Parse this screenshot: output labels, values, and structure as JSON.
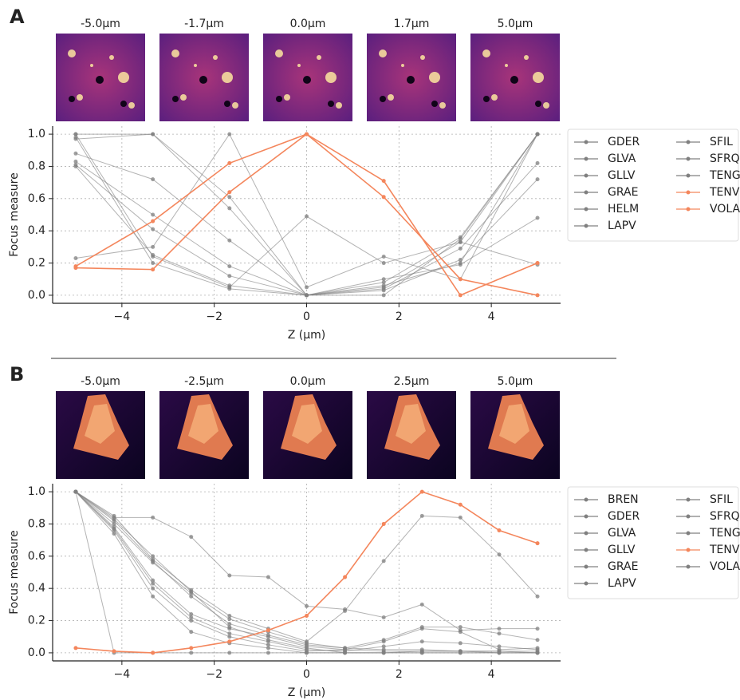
{
  "chart_data": [
    {
      "type": "line",
      "panel_label": "A",
      "image_labels": [
        "-5.0μm",
        "-1.7μm",
        "0.0μm",
        "1.7μm",
        "5.0μm"
      ],
      "xlabel": "Z (μm)",
      "ylabel": "Focus measure",
      "x": [
        -5,
        -3.33,
        -1.67,
        0,
        1.67,
        3.33,
        5
      ],
      "xlim": [
        -5.5,
        5.5
      ],
      "ylim": [
        -0.05,
        1.05
      ],
      "xticks": [
        {
          "value": -4,
          "label": "−4"
        },
        {
          "value": -2,
          "label": "−2"
        },
        0,
        2,
        4
      ],
      "yticks": [
        {
          "value": 0,
          "label": "0.0"
        },
        0.2,
        0.4,
        0.6,
        0.8,
        {
          "value": 1,
          "label": "1.0"
        }
      ],
      "grid": true,
      "legend": "outside-right",
      "legend_columns": 2,
      "series": [
        {
          "name": "GDER",
          "color": "#808080",
          "values": [
            1.0,
            1.0,
            0.61,
            0.0,
            0.05,
            0.33,
            1.0
          ]
        },
        {
          "name": "GLVA",
          "color": "#808080",
          "values": [
            0.97,
            1.0,
            0.54,
            0.0,
            0.08,
            0.36,
            1.0
          ]
        },
        {
          "name": "GLLV",
          "color": "#808080",
          "values": [
            0.88,
            0.72,
            0.34,
            0.0,
            0.04,
            0.29,
            0.82
          ]
        },
        {
          "name": "GRAE",
          "color": "#808080",
          "values": [
            0.83,
            0.5,
            0.18,
            0.0,
            0.03,
            0.22,
            0.72
          ]
        },
        {
          "name": "HELM",
          "color": "#808080",
          "values": [
            0.81,
            0.41,
            0.12,
            0.0,
            0.06,
            0.2,
            1.0
          ]
        },
        {
          "name": "LAPV",
          "color": "#808080",
          "values": [
            0.8,
            0.25,
            0.06,
            0.0,
            0.1,
            0.19,
            0.48
          ]
        },
        {
          "name": "SFIL",
          "color": "#808080",
          "values": [
            0.23,
            0.3,
            1.0,
            0.05,
            0.24,
            0.1,
            1.0
          ]
        },
        {
          "name": "SFRQ",
          "color": "#808080",
          "values": [
            1.0,
            0.24,
            0.05,
            0.49,
            0.2,
            0.33,
            0.19
          ]
        },
        {
          "name": "TENG",
          "color": "#808080",
          "values": [
            0.98,
            0.2,
            0.04,
            0.0,
            0.0,
            0.35,
            1.0
          ]
        },
        {
          "name": "TENV",
          "color": "#f4865c",
          "values": [
            0.18,
            0.46,
            0.82,
            1.0,
            0.71,
            0.0,
            0.2
          ]
        },
        {
          "name": "VOLA",
          "color": "#f4865c",
          "values": [
            0.17,
            0.16,
            0.64,
            1.0,
            0.61,
            0.1,
            0.0
          ]
        }
      ]
    },
    {
      "type": "line",
      "panel_label": "B",
      "image_labels": [
        "-5.0μm",
        "-2.5μm",
        "0.0μm",
        "2.5μm",
        "5.0μm"
      ],
      "xlabel": "Z (μm)",
      "ylabel": "Focus measure",
      "x": [
        -5,
        -4.17,
        -3.33,
        -2.5,
        -1.67,
        -0.83,
        0,
        0.83,
        1.67,
        2.5,
        3.33,
        4.17,
        5
      ],
      "xlim": [
        -5.5,
        5.5
      ],
      "ylim": [
        -0.05,
        1.05
      ],
      "xticks": [
        {
          "value": -4,
          "label": "−4"
        },
        {
          "value": -2,
          "label": "−2"
        },
        0,
        2,
        4
      ],
      "yticks": [
        {
          "value": 0,
          "label": "0.0"
        },
        0.2,
        0.4,
        0.6,
        0.8,
        {
          "value": 1,
          "label": "1.0"
        }
      ],
      "grid": true,
      "legend": "outside-right",
      "legend_columns": 2,
      "series": [
        {
          "name": "BREN",
          "color": "#808080",
          "values": [
            1.0,
            0.0,
            0.0,
            0.0,
            0.0,
            0.0,
            0.0,
            0.0,
            0.0,
            0.0,
            0.0,
            0.0,
            0.0
          ]
        },
        {
          "name": "GDER",
          "color": "#808080",
          "values": [
            1.0,
            0.84,
            0.84,
            0.72,
            0.48,
            0.47,
            0.29,
            0.27,
            0.22,
            0.3,
            0.14,
            0.15,
            0.15
          ]
        },
        {
          "name": "GLVA",
          "color": "#808080",
          "values": [
            1.0,
            0.85,
            0.58,
            0.39,
            0.23,
            0.15,
            0.07,
            0.26,
            0.57,
            0.85,
            0.84,
            0.61,
            0.35
          ]
        },
        {
          "name": "GLLV",
          "color": "#808080",
          "values": [
            1.0,
            0.8,
            0.56,
            0.37,
            0.21,
            0.13,
            0.06,
            0.03,
            0.08,
            0.16,
            0.16,
            0.12,
            0.08
          ]
        },
        {
          "name": "GRAE",
          "color": "#808080",
          "values": [
            1.0,
            0.78,
            0.45,
            0.24,
            0.15,
            0.1,
            0.04,
            0.02,
            0.07,
            0.15,
            0.13,
            0.02,
            0.03
          ]
        },
        {
          "name": "LAPV",
          "color": "#808080",
          "values": [
            1.0,
            0.77,
            0.43,
            0.22,
            0.12,
            0.07,
            0.02,
            0.01,
            0.04,
            0.07,
            0.06,
            0.04,
            0.02
          ]
        },
        {
          "name": "SFIL",
          "color": "#808080",
          "values": [
            1.0,
            0.76,
            0.4,
            0.2,
            0.1,
            0.05,
            0.01,
            0.02,
            0.01,
            0.01,
            0.01,
            0.01,
            0.01
          ]
        },
        {
          "name": "SFRQ",
          "color": "#808080",
          "values": [
            1.0,
            0.74,
            0.35,
            0.13,
            0.06,
            0.03,
            0.0,
            0.0,
            0.0,
            0.01,
            0.01,
            0.01,
            0.0
          ]
        },
        {
          "name": "TENG",
          "color": "#808080",
          "values": [
            1.0,
            0.82,
            0.57,
            0.35,
            0.18,
            0.11,
            0.05,
            0.03,
            0.02,
            0.02,
            0.01,
            0.0,
            0.0
          ]
        },
        {
          "name": "TENV",
          "color": "#f4865c",
          "values": [
            0.03,
            0.01,
            0.0,
            0.03,
            0.07,
            0.14,
            0.23,
            0.47,
            0.8,
            1.0,
            0.92,
            0.76,
            0.68
          ]
        },
        {
          "name": "VOLA",
          "color": "#808080",
          "values": [
            1.0,
            0.83,
            0.6,
            0.38,
            0.16,
            0.08,
            0.03,
            0.0,
            0.0,
            0.0,
            0.0,
            0.0,
            0.0
          ]
        }
      ]
    }
  ]
}
